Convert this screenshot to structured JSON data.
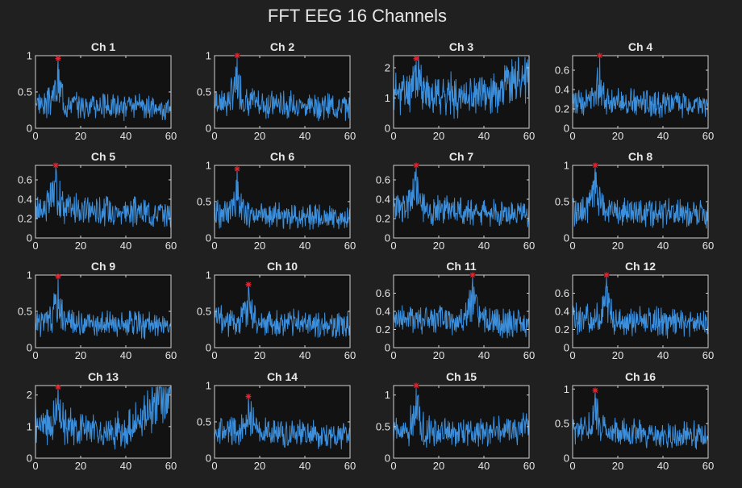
{
  "figure": {
    "title": "FFT EEG 16 Channels"
  },
  "colors": {
    "background": "#202020",
    "axes_bg": "#121212",
    "axis": "#d0d0d0",
    "text": "#e6e6e6",
    "line": "#3b8fdc",
    "peak": "#e8232e"
  },
  "chart_data": [
    {
      "type": "line",
      "title": "Ch 1",
      "xlim": [
        0,
        60
      ],
      "ylim": [
        0,
        1
      ],
      "xticks": [
        0,
        20,
        40,
        60
      ],
      "yticks": [
        0,
        0.5,
        1
      ],
      "peak": {
        "x": 10,
        "y": 0.96
      },
      "shape": {
        "base": 0.35,
        "decay": 0.22,
        "rise": 0,
        "riseStart": 45,
        "noise": 0.14,
        "seed": 3
      }
    },
    {
      "type": "line",
      "title": "Ch 2",
      "xlim": [
        0,
        60
      ],
      "ylim": [
        0,
        1
      ],
      "xticks": [
        0,
        20,
        40,
        60
      ],
      "yticks": [
        0,
        0.5,
        1
      ],
      "peak": {
        "x": 10,
        "y": 1.0
      },
      "shape": {
        "base": 0.37,
        "decay": 0.22,
        "rise": 0,
        "riseStart": 45,
        "noise": 0.15,
        "seed": 7
      }
    },
    {
      "type": "line",
      "title": "Ch 3",
      "xlim": [
        0,
        60
      ],
      "ylim": [
        0,
        2.4
      ],
      "xticks": [
        0,
        20,
        40,
        60
      ],
      "yticks": [
        0,
        1,
        2
      ],
      "peak": {
        "x": 10,
        "y": 2.3
      },
      "shape": {
        "base": 0.5,
        "decay": 0.2,
        "rise": 0.35,
        "riseStart": 40,
        "noise": 0.25,
        "seed": 11
      }
    },
    {
      "type": "line",
      "title": "Ch 4",
      "xlim": [
        0,
        60
      ],
      "ylim": [
        0,
        0.75
      ],
      "xticks": [
        0,
        20,
        40,
        60
      ],
      "yticks": [
        0,
        0.2,
        0.4,
        0.6
      ],
      "peak": {
        "x": 12,
        "y": 0.75
      },
      "shape": {
        "base": 0.38,
        "decay": 0.2,
        "rise": 0,
        "riseStart": 45,
        "noise": 0.13,
        "seed": 13
      }
    },
    {
      "type": "line",
      "title": "Ch 5",
      "xlim": [
        0,
        60
      ],
      "ylim": [
        0,
        0.75
      ],
      "xticks": [
        0,
        20,
        40,
        60
      ],
      "yticks": [
        0,
        0.2,
        0.4,
        0.6
      ],
      "peak": {
        "x": 9,
        "y": 0.75
      },
      "shape": {
        "base": 0.42,
        "decay": 0.2,
        "rise": 0,
        "riseStart": 45,
        "noise": 0.14,
        "seed": 17
      }
    },
    {
      "type": "line",
      "title": "Ch 6",
      "xlim": [
        0,
        60
      ],
      "ylim": [
        0,
        1
      ],
      "xticks": [
        0,
        20,
        40,
        60
      ],
      "yticks": [
        0,
        0.5,
        1
      ],
      "peak": {
        "x": 10,
        "y": 0.95
      },
      "shape": {
        "base": 0.34,
        "decay": 0.2,
        "rise": 0,
        "riseStart": 45,
        "noise": 0.14,
        "seed": 19
      }
    },
    {
      "type": "line",
      "title": "Ch 7",
      "xlim": [
        0,
        60
      ],
      "ylim": [
        0,
        0.75
      ],
      "xticks": [
        0,
        20,
        40,
        60
      ],
      "yticks": [
        0,
        0.2,
        0.4,
        0.6
      ],
      "peak": {
        "x": 10,
        "y": 0.75
      },
      "shape": {
        "base": 0.42,
        "decay": 0.2,
        "rise": 0,
        "riseStart": 45,
        "noise": 0.13,
        "seed": 23
      }
    },
    {
      "type": "line",
      "title": "Ch 8",
      "xlim": [
        0,
        60
      ],
      "ylim": [
        0,
        1
      ],
      "xticks": [
        0,
        20,
        40,
        60
      ],
      "yticks": [
        0,
        0.5,
        1
      ],
      "peak": {
        "x": 10,
        "y": 1.0
      },
      "shape": {
        "base": 0.38,
        "decay": 0.15,
        "rise": 0,
        "riseStart": 45,
        "noise": 0.15,
        "seed": 29
      }
    },
    {
      "type": "line",
      "title": "Ch 9",
      "xlim": [
        0,
        60
      ],
      "ylim": [
        0,
        1
      ],
      "xticks": [
        0,
        20,
        40,
        60
      ],
      "yticks": [
        0,
        0.5,
        1
      ],
      "peak": {
        "x": 10,
        "y": 0.98
      },
      "shape": {
        "base": 0.36,
        "decay": 0.18,
        "rise": 0,
        "riseStart": 45,
        "noise": 0.14,
        "seed": 31
      }
    },
    {
      "type": "line",
      "title": "Ch 10",
      "xlim": [
        0,
        60
      ],
      "ylim": [
        0,
        1
      ],
      "xticks": [
        0,
        20,
        40,
        60
      ],
      "yticks": [
        0,
        0.5,
        1
      ],
      "peak": {
        "x": 15,
        "y": 0.87
      },
      "shape": {
        "base": 0.38,
        "decay": 0.2,
        "rise": 0,
        "riseStart": 45,
        "noise": 0.15,
        "seed": 37
      }
    },
    {
      "type": "line",
      "title": "Ch 11",
      "xlim": [
        0,
        60
      ],
      "ylim": [
        0,
        0.8
      ],
      "xticks": [
        0,
        20,
        40,
        60
      ],
      "yticks": [
        0,
        0.2,
        0.4,
        0.6
      ],
      "peak": {
        "x": 35,
        "y": 0.8
      },
      "shape": {
        "base": 0.4,
        "decay": 0.18,
        "rise": 0,
        "riseStart": 45,
        "noise": 0.14,
        "seed": 41
      }
    },
    {
      "type": "line",
      "title": "Ch 12",
      "xlim": [
        0,
        60
      ],
      "ylim": [
        0,
        0.8
      ],
      "xticks": [
        0,
        20,
        40,
        60
      ],
      "yticks": [
        0,
        0.2,
        0.4,
        0.6
      ],
      "peak": {
        "x": 15,
        "y": 0.8
      },
      "shape": {
        "base": 0.4,
        "decay": 0.18,
        "rise": 0,
        "riseStart": 45,
        "noise": 0.14,
        "seed": 43
      }
    },
    {
      "type": "line",
      "title": "Ch 13",
      "xlim": [
        0,
        60
      ],
      "ylim": [
        0,
        2.3
      ],
      "xticks": [
        0,
        20,
        40,
        60
      ],
      "yticks": [
        0,
        1,
        2
      ],
      "peak": {
        "x": 10,
        "y": 2.25
      },
      "shape": {
        "base": 0.45,
        "decay": 0.25,
        "rise": 0.6,
        "riseStart": 40,
        "noise": 0.2,
        "seed": 47
      }
    },
    {
      "type": "line",
      "title": "Ch 14",
      "xlim": [
        0,
        60
      ],
      "ylim": [
        0,
        1
      ],
      "xticks": [
        0,
        20,
        40,
        60
      ],
      "yticks": [
        0,
        0.5,
        1
      ],
      "peak": {
        "x": 15,
        "y": 0.85
      },
      "shape": {
        "base": 0.38,
        "decay": 0.2,
        "rise": 0,
        "riseStart": 45,
        "noise": 0.15,
        "seed": 53
      }
    },
    {
      "type": "line",
      "title": "Ch 15",
      "xlim": [
        0,
        60
      ],
      "ylim": [
        0,
        1.15
      ],
      "xticks": [
        0,
        20,
        40,
        60
      ],
      "yticks": [
        0,
        0.5,
        1
      ],
      "peak": {
        "x": 10,
        "y": 1.15
      },
      "shape": {
        "base": 0.38,
        "decay": 0.15,
        "rise": 0.1,
        "riseStart": 40,
        "noise": 0.17,
        "seed": 59
      }
    },
    {
      "type": "line",
      "title": "Ch 16",
      "xlim": [
        0,
        60
      ],
      "ylim": [
        0,
        1.05
      ],
      "xticks": [
        0,
        20,
        40,
        60
      ],
      "yticks": [
        0,
        0.5,
        1
      ],
      "peak": {
        "x": 10,
        "y": 0.98
      },
      "shape": {
        "base": 0.37,
        "decay": 0.18,
        "rise": 0,
        "riseStart": 45,
        "noise": 0.15,
        "seed": 61
      }
    }
  ]
}
